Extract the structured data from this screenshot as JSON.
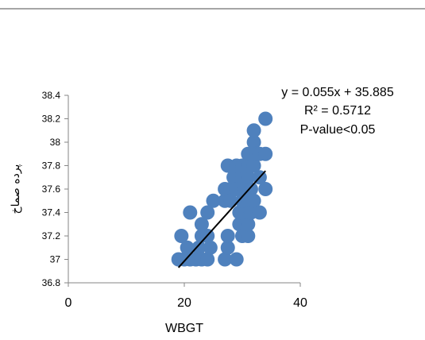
{
  "chart_data": {
    "type": "scatter",
    "title": "",
    "xlabel": "WBGT",
    "ylabel": "پرده صماخ",
    "xlim": [
      0,
      40
    ],
    "ylim": [
      36.8,
      38.4
    ],
    "x_ticks": [
      "0",
      "20",
      "40"
    ],
    "y_ticks": [
      "36.8",
      "37",
      "37.2",
      "37.4",
      "37.6",
      "37.8",
      "38",
      "38.2",
      "38.4"
    ],
    "grid": false,
    "marker_color": "#4f81bd",
    "trendline": {
      "slope": 0.055,
      "intercept": 35.885,
      "x_range": [
        19,
        34
      ],
      "color": "#000000"
    },
    "annotations": [
      "y = 0.055x + 35.885",
      "R² = 0.5712",
      "P-value<0.05"
    ],
    "points": [
      [
        19,
        37.0
      ],
      [
        19.5,
        37.2
      ],
      [
        20,
        37.0
      ],
      [
        20.5,
        37.1
      ],
      [
        21,
        37.0
      ],
      [
        22,
        37.0
      ],
      [
        22.5,
        37.1
      ],
      [
        23,
        37.0
      ],
      [
        24,
        37.0
      ],
      [
        24.5,
        37.1
      ],
      [
        21,
        37.4
      ],
      [
        23,
        37.3
      ],
      [
        24,
        37.4
      ],
      [
        25,
        37.5
      ],
      [
        23,
        37.2
      ],
      [
        24,
        37.2
      ],
      [
        27,
        37.0
      ],
      [
        27.5,
        37.1
      ],
      [
        27.5,
        37.2
      ],
      [
        29,
        37.0
      ],
      [
        27,
        37.5
      ],
      [
        27,
        37.6
      ],
      [
        28,
        37.6
      ],
      [
        28,
        37.5
      ],
      [
        27.5,
        37.8
      ],
      [
        28.5,
        37.7
      ],
      [
        29,
        37.6
      ],
      [
        29,
        37.8
      ],
      [
        29.5,
        37.4
      ],
      [
        29.5,
        37.3
      ],
      [
        30,
        37.2
      ],
      [
        30,
        37.4
      ],
      [
        30,
        37.5
      ],
      [
        30,
        37.7
      ],
      [
        30,
        37.8
      ],
      [
        30.5,
        37.6
      ],
      [
        31,
        37.2
      ],
      [
        31,
        37.3
      ],
      [
        31,
        37.5
      ],
      [
        31,
        37.7
      ],
      [
        31,
        37.8
      ],
      [
        31,
        37.9
      ],
      [
        31.5,
        37.4
      ],
      [
        31.5,
        37.6
      ],
      [
        32,
        38.0
      ],
      [
        32,
        38.1
      ],
      [
        32,
        37.8
      ],
      [
        32,
        37.5
      ],
      [
        32.5,
        37.9
      ],
      [
        33,
        37.4
      ],
      [
        33,
        37.9
      ],
      [
        33,
        37.7
      ],
      [
        34,
        38.2
      ],
      [
        34,
        37.9
      ],
      [
        34,
        37.6
      ]
    ]
  }
}
